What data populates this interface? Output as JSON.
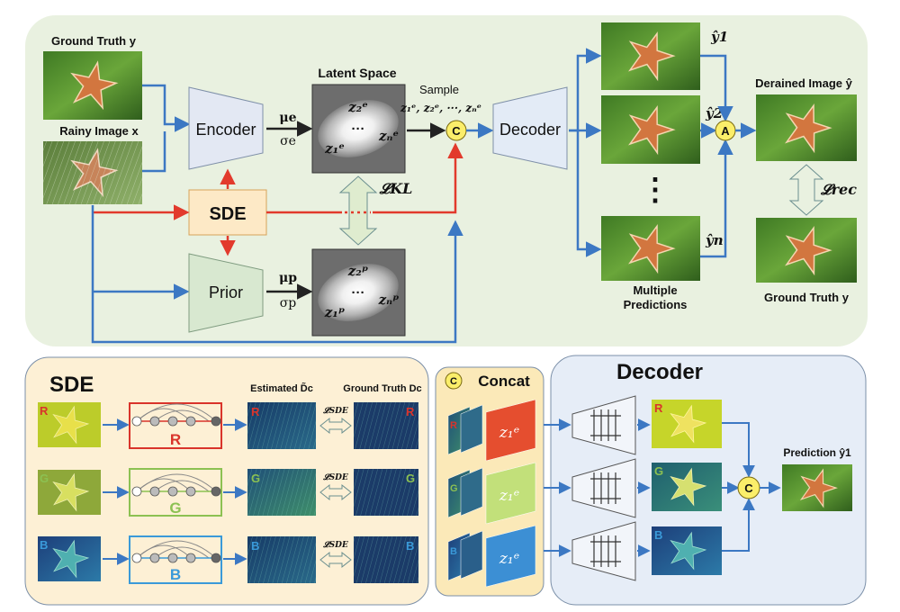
{
  "top": {
    "ground_truth_label": "Ground Truth y",
    "rainy_label": "Rainy Image x",
    "encoder_label": "Encoder",
    "sde_label": "SDE",
    "prior_label": "Prior",
    "mu_e": "μe",
    "sigma_e": "σe",
    "mu_p": "μp",
    "sigma_p": "σp",
    "latent_title": "Latent Space",
    "latent_enc": {
      "z2": "z₂ᵉ",
      "z1": "z₁ᵉ",
      "zn": "zₙᵉ",
      "dots": "···"
    },
    "latent_prior": {
      "z2": "z₂ᵖ",
      "z1": "z₁ᵖ",
      "zn": "zₙᵖ",
      "dots": "···"
    },
    "kl_label": "𝓛KL",
    "sample_label": "Sample",
    "sample_terms": "z₁ᵉ, z₂ᵉ, ···, zₙᵉ",
    "concat_symbol": "C",
    "decoder_label": "Decoder",
    "y_hat_1": "ŷ1",
    "y_hat_2": "ŷ2",
    "y_hat_n": "ŷn",
    "aggregate_symbol": "A",
    "vertical_dots": "⋮",
    "multiple_predictions": [
      "Multiple",
      "Predictions"
    ],
    "derained_label": "Derained Image ŷ",
    "rec_label": "𝓛rec",
    "ground_truth_bottom": "Ground Truth y"
  },
  "sde_panel": {
    "title": "SDE",
    "estimated_label": "Estimated D̃c",
    "ground_truth_label": "Ground Truth Dc",
    "loss_label": "𝓛SDE",
    "channels": [
      {
        "letter": "R",
        "color": "#d9342b"
      },
      {
        "letter": "G",
        "color": "#8cc152"
      },
      {
        "letter": "B",
        "color": "#3a9ad9"
      }
    ]
  },
  "concat_panel": {
    "symbol": "C",
    "title": "Concat",
    "latent_label": "z₁ᵉ",
    "channels": [
      "R",
      "G",
      "B"
    ]
  },
  "decoder_panel": {
    "title": "Decoder",
    "channels": [
      "R",
      "G",
      "B"
    ],
    "concat_symbol": "C",
    "prediction_label": "Prediction ŷ1"
  },
  "colors": {
    "top_bg": "#e9f1e0",
    "sde_bg": "#fdf0d5",
    "concat_bg": "#fbe9b8",
    "decoder_bg": "#e6edf7",
    "arrow_blue": "#3c78c3",
    "arrow_red": "#e23a2c",
    "yellow_node": "#fbee6a"
  }
}
